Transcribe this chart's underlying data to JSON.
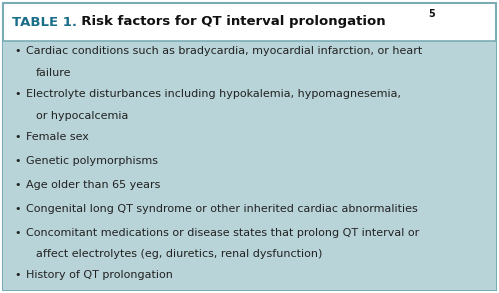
{
  "title_prefix": "TABLE 1.",
  "title_main": "  Risk factors for QT interval prolongation",
  "title_superscript": "5",
  "bg_color": "#b8d4d8",
  "header_bg_color": "#ffffff",
  "border_color": "#7aacb4",
  "divider_color": "#7aacb4",
  "title_prefix_color": "#1a6e8a",
  "title_main_color": "#111111",
  "bullet_color": "#222222",
  "bullet_items_line1": [
    "Cardiac conditions such as bradycardia, myocardial infarction, or heart",
    "Electrolyte disturbances including hypokalemia, hypomagnesemia,",
    "Female sex",
    "Genetic polymorphisms",
    "Age older than 65 years",
    "Congenital long QT syndrome or other inherited cardiac abnormalities",
    "Concomitant medications or disease states that prolong QT interval or",
    "History of QT prolongation"
  ],
  "bullet_items_line2": [
    "failure",
    "or hypocalcemia",
    "",
    "",
    "",
    "",
    "affect electrolytes (eg, diuretics, renal dysfunction)",
    ""
  ],
  "figsize": [
    4.99,
    2.93
  ],
  "dpi": 100,
  "font_size": 8.0,
  "title_font_size": 9.5
}
